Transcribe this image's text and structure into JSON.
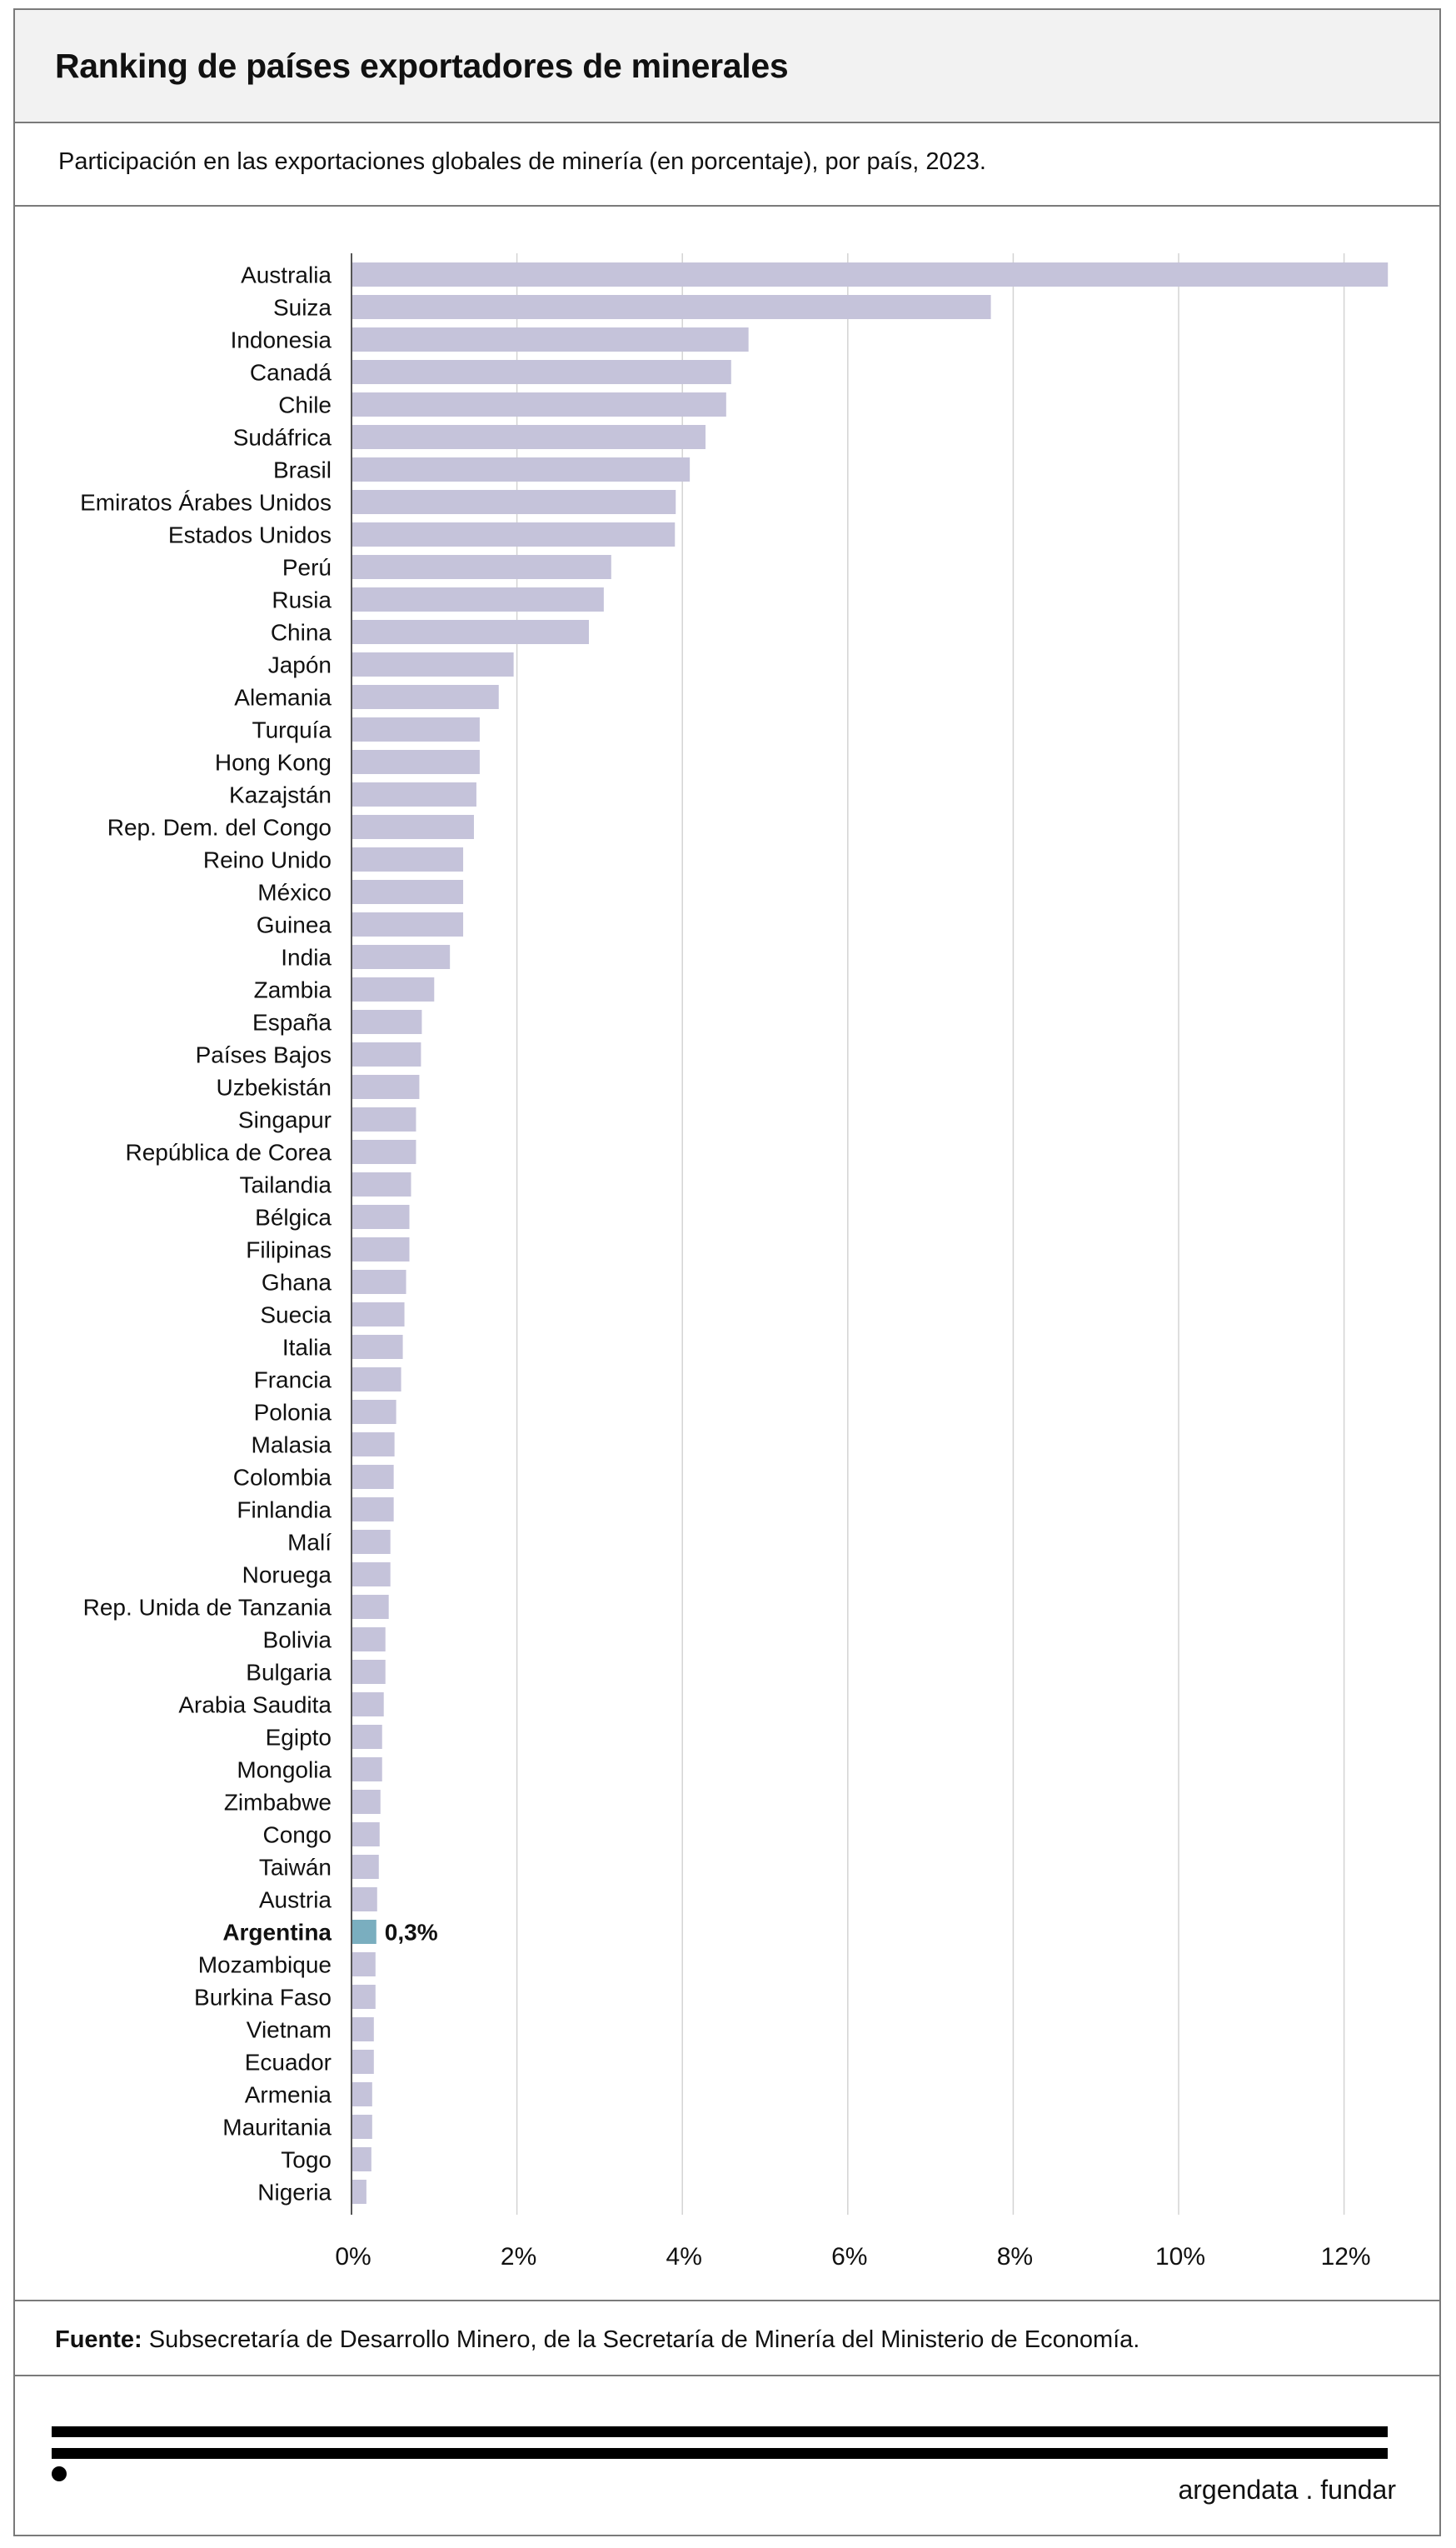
{
  "header": {
    "title": "Ranking de países exportadores de minerales",
    "subtitle": "Participación en las exportaciones globales de minería (en porcentaje), por país, 2023."
  },
  "source": {
    "label": "Fuente:",
    "text": "Subsecretaría de Desarrollo Minero, de la Secretaría de Minería del Ministerio de Economía."
  },
  "logo": {
    "text": "argendata . fundar"
  },
  "colors": {
    "bar": "#c5c3da",
    "highlight": "#7aaebf",
    "grid": "#d3d3d3",
    "axis": "#555555"
  },
  "chart_data": {
    "type": "bar",
    "orientation": "horizontal",
    "title": "Ranking de países exportadores de minerales",
    "subtitle": "Participación en las exportaciones globales de minería (en porcentaje), por país, 2023.",
    "xlabel": "",
    "ylabel": "",
    "xlim": [
      0,
      13
    ],
    "xticks": [
      0,
      2,
      4,
      6,
      8,
      10,
      12
    ],
    "xtick_labels": [
      "0%",
      "2%",
      "4%",
      "6%",
      "8%",
      "10%",
      "12%"
    ],
    "grid": "vertical",
    "categories": [
      "Australia",
      "Suiza",
      "Indonesia",
      "Canadá",
      "Chile",
      "Sudáfrica",
      "Brasil",
      "Emiratos Árabes Unidos",
      "Estados Unidos",
      "Perú",
      "Rusia",
      "China",
      "Japón",
      "Alemania",
      "Turquía",
      "Hong Kong",
      "Kazajstán",
      "Rep. Dem. del Congo",
      "Reino Unido",
      "México",
      "Guinea",
      "India",
      "Zambia",
      "España",
      "Países Bajos",
      "Uzbekistán",
      "Singapur",
      "República de Corea",
      "Tailandia",
      "Bélgica",
      "Filipinas",
      "Ghana",
      "Suecia",
      "Italia",
      "Francia",
      "Polonia",
      "Malasia",
      "Colombia",
      "Finlandia",
      "Malí",
      "Noruega",
      "Rep. Unida de Tanzania",
      "Bolivia",
      "Bulgaria",
      "Arabia Saudita",
      "Egipto",
      "Mongolia",
      "Zimbabwe",
      "Congo",
      "Taiwán",
      "Austria",
      "Argentina",
      "Mozambique",
      "Burkina Faso",
      "Vietnam",
      "Ecuador",
      "Armenia",
      "Mauritania",
      "Togo",
      "Nigeria"
    ],
    "values": [
      12.53,
      7.73,
      4.8,
      4.59,
      4.53,
      4.28,
      4.09,
      3.92,
      3.91,
      3.14,
      3.05,
      2.87,
      1.96,
      1.78,
      1.55,
      1.55,
      1.51,
      1.48,
      1.35,
      1.35,
      1.35,
      1.19,
      1.0,
      0.85,
      0.84,
      0.82,
      0.78,
      0.78,
      0.72,
      0.7,
      0.7,
      0.66,
      0.64,
      0.62,
      0.6,
      0.54,
      0.52,
      0.51,
      0.51,
      0.47,
      0.47,
      0.45,
      0.41,
      0.41,
      0.39,
      0.37,
      0.37,
      0.35,
      0.34,
      0.33,
      0.31,
      0.3,
      0.29,
      0.29,
      0.27,
      0.27,
      0.25,
      0.25,
      0.24,
      0.18
    ],
    "highlight": {
      "category": "Argentina",
      "label": "0,3%"
    }
  }
}
